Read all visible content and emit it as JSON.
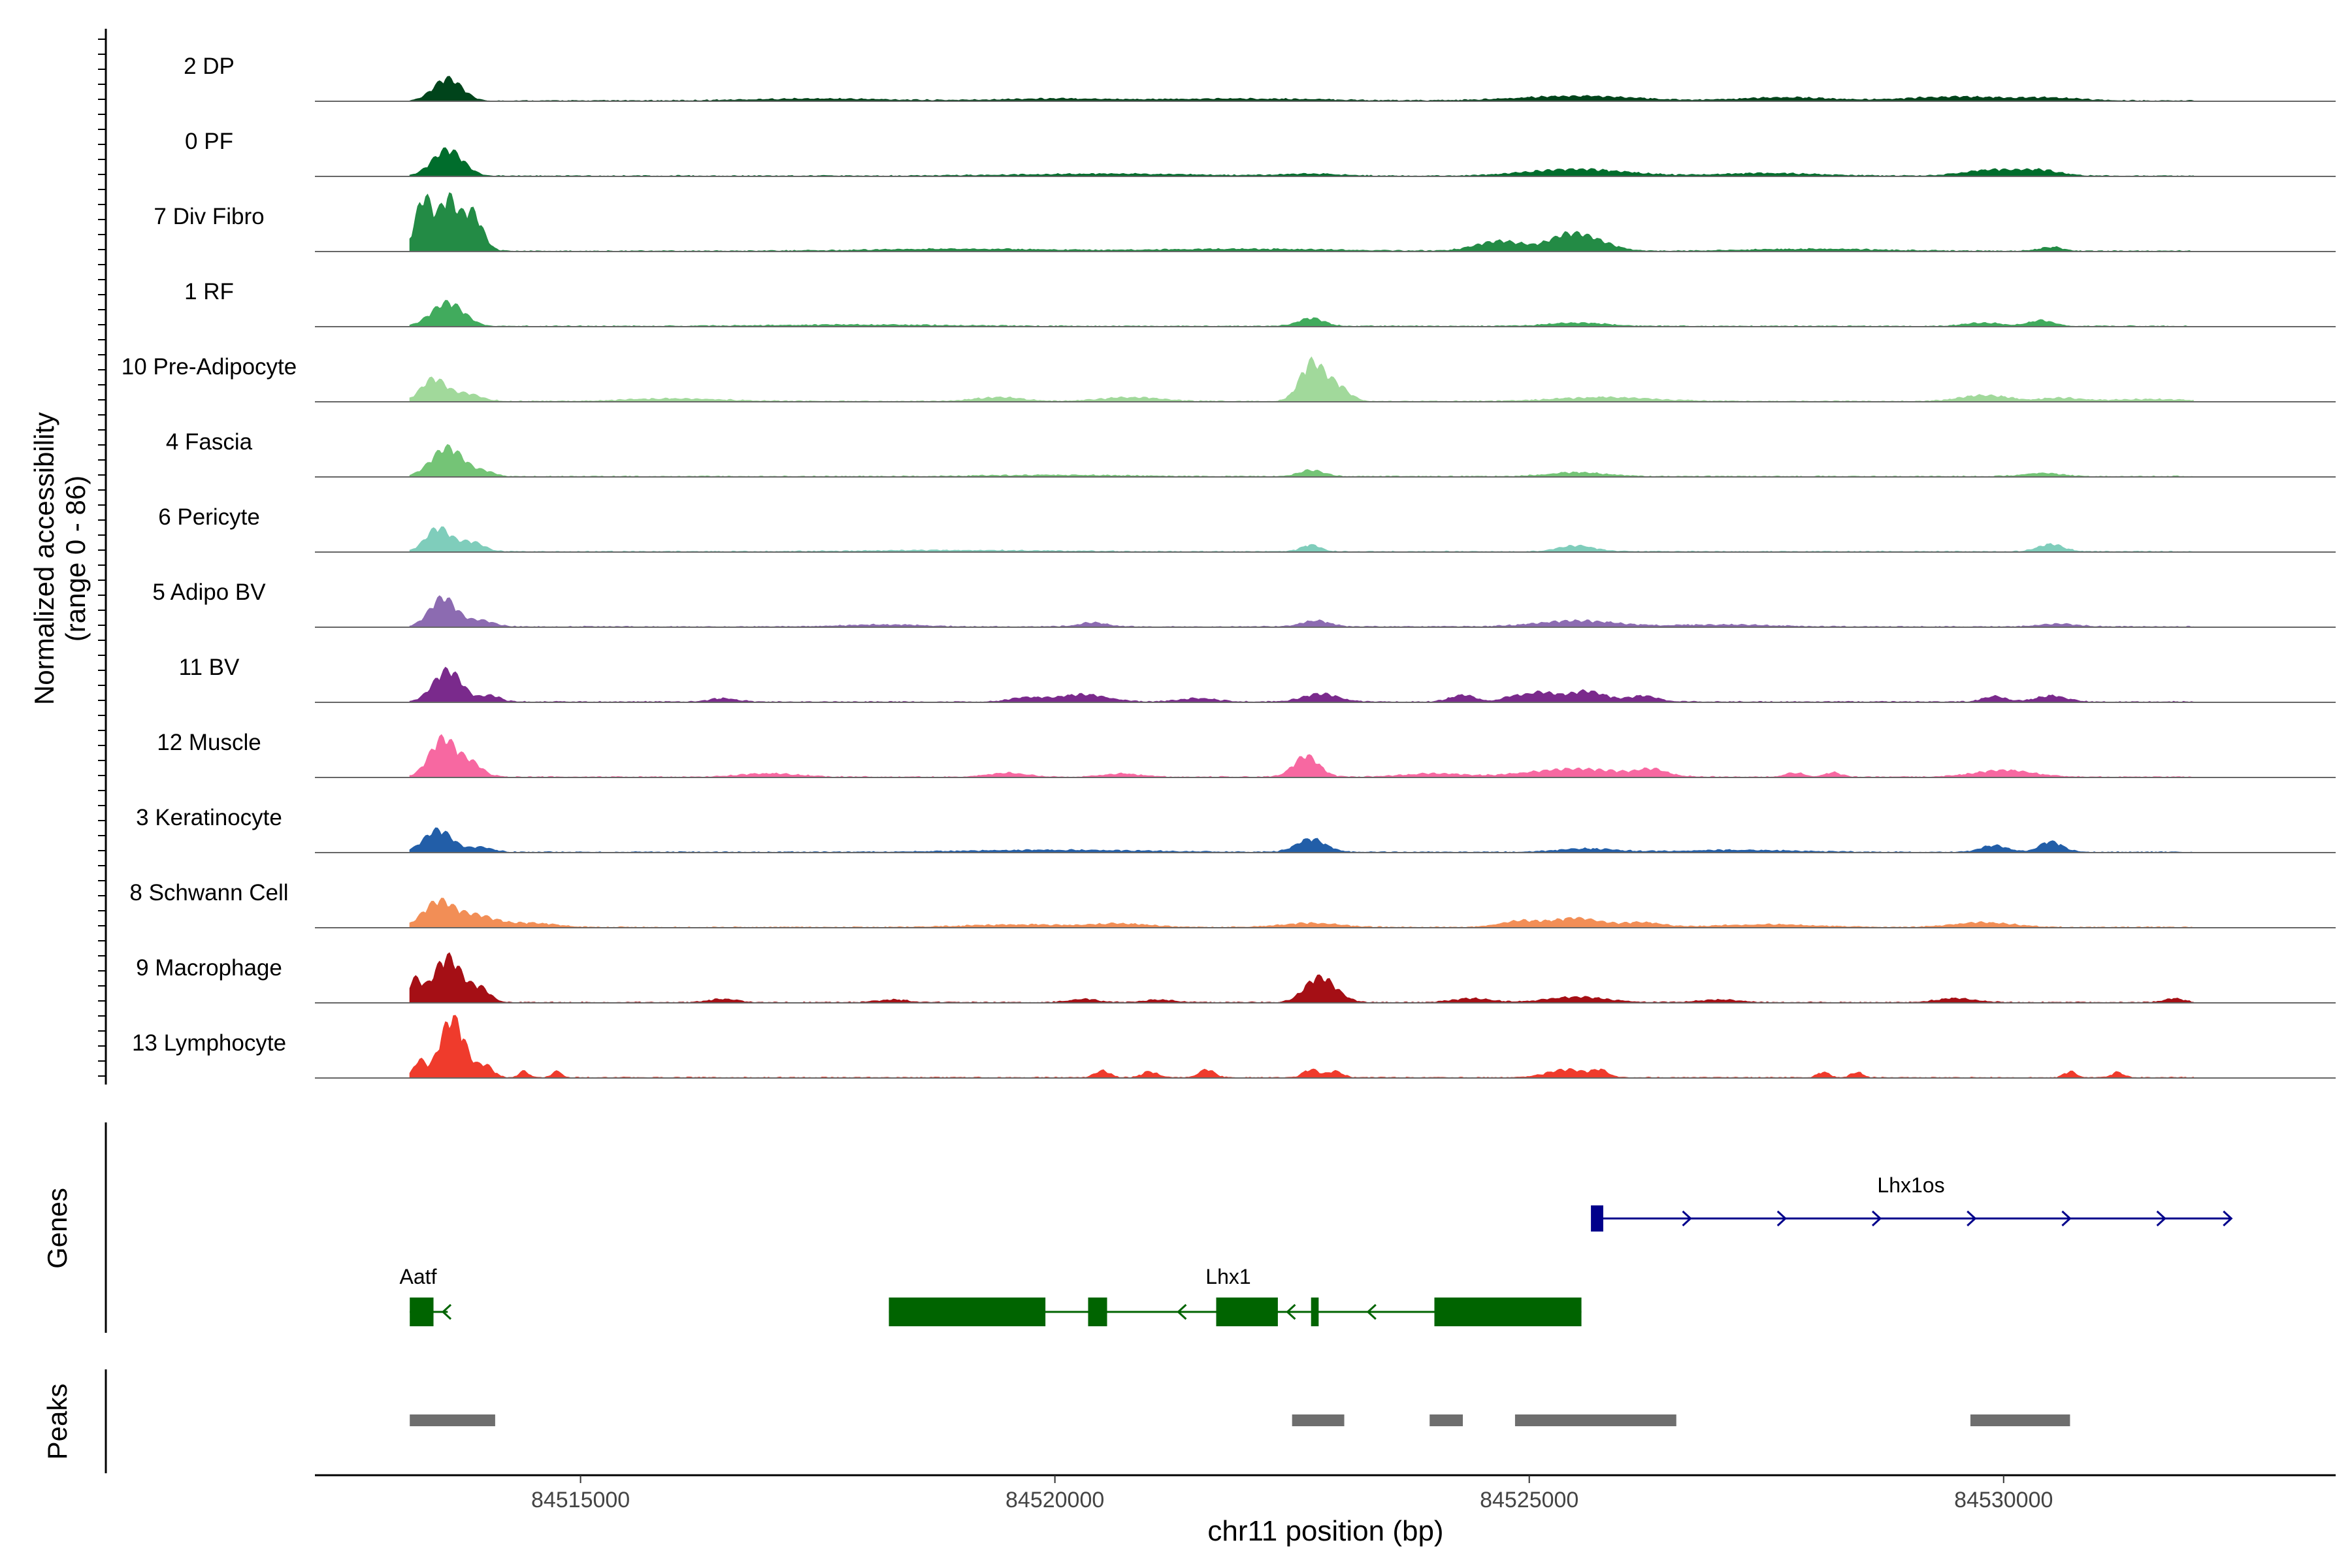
{
  "chart_data": {
    "type": "area",
    "title": "",
    "chromosome": "chr11",
    "xlabel": "chr11 position (bp)",
    "ylabel_line1": "Normalized accessibility",
    "ylabel_line2": "(range 0 - 86)",
    "xlim": [
      84512200,
      84533500
    ],
    "xticks": [
      84515000,
      84520000,
      84525000,
      84530000
    ],
    "xtick_labels": [
      "84515000",
      "84520000",
      "84525000",
      "84530000"
    ],
    "y_range": [
      0,
      86
    ],
    "tracks": [
      {
        "name": "2 DP",
        "color": "#00441b",
        "peaks": [
          [
            84513600,
            0.34,
            150
          ],
          [
            84525500,
            0.07,
            600
          ],
          [
            84527700,
            0.05,
            450
          ],
          [
            84529500,
            0.06,
            500
          ],
          [
            84517500,
            0.03,
            700
          ],
          [
            84522000,
            0.03,
            800
          ],
          [
            84530500,
            0.04,
            300
          ],
          [
            84520000,
            0.03,
            600
          ]
        ]
      },
      {
        "name": "0 PF",
        "color": "#006d2c",
        "peaks": [
          [
            84513600,
            0.4,
            160
          ],
          [
            84525500,
            0.1,
            500
          ],
          [
            84529900,
            0.09,
            300
          ],
          [
            84530400,
            0.07,
            200
          ],
          [
            84520500,
            0.03,
            900
          ],
          [
            84522700,
            0.03,
            300
          ],
          [
            84527500,
            0.04,
            500
          ]
        ]
      },
      {
        "name": "7 Div Fibro",
        "color": "#238b45",
        "peaks": [
          [
            84513350,
            0.8,
            90
          ],
          [
            84513600,
            0.75,
            90
          ],
          [
            84513850,
            0.6,
            110
          ],
          [
            84524700,
            0.15,
            250
          ],
          [
            84525400,
            0.22,
            200
          ],
          [
            84525700,
            0.12,
            200
          ],
          [
            84530500,
            0.06,
            120
          ],
          [
            84519000,
            0.03,
            900
          ],
          [
            84522000,
            0.03,
            900
          ],
          [
            84528000,
            0.03,
            700
          ]
        ]
      },
      {
        "name": "1 RF",
        "color": "#41ab5d",
        "peaks": [
          [
            84513600,
            0.36,
            170
          ],
          [
            84522700,
            0.12,
            130
          ],
          [
            84530400,
            0.09,
            120
          ],
          [
            84529800,
            0.05,
            200
          ],
          [
            84525500,
            0.05,
            300
          ],
          [
            84518000,
            0.02,
            900
          ]
        ]
      },
      {
        "name": "10 Pre-Adipocyte",
        "color": "#a1d99b",
        "peaks": [
          [
            84513450,
            0.34,
            130
          ],
          [
            84513800,
            0.12,
            150
          ],
          [
            84522700,
            0.55,
            120
          ],
          [
            84522950,
            0.25,
            130
          ],
          [
            84519400,
            0.06,
            250
          ],
          [
            84520800,
            0.06,
            300
          ],
          [
            84525800,
            0.06,
            500
          ],
          [
            84529800,
            0.09,
            250
          ],
          [
            84530600,
            0.05,
            200
          ],
          [
            84516000,
            0.04,
            500
          ],
          [
            84531500,
            0.03,
            400
          ]
        ]
      },
      {
        "name": "4 Fascia",
        "color": "#74c476",
        "peaks": [
          [
            84513600,
            0.44,
            170
          ],
          [
            84514000,
            0.07,
            100
          ],
          [
            84522700,
            0.09,
            130
          ],
          [
            84525500,
            0.06,
            300
          ],
          [
            84530400,
            0.05,
            200
          ],
          [
            84520000,
            0.02,
            700
          ]
        ]
      },
      {
        "name": "6 Pericyte",
        "color": "#7fcdbb",
        "peaks": [
          [
            84513500,
            0.36,
            130
          ],
          [
            84513850,
            0.15,
            130
          ],
          [
            84522700,
            0.1,
            100
          ],
          [
            84525500,
            0.09,
            180
          ],
          [
            84530500,
            0.11,
            130
          ],
          [
            84519000,
            0.02,
            900
          ]
        ]
      },
      {
        "name": "5 Adipo BV",
        "color": "#8c6bb1",
        "peaks": [
          [
            84513550,
            0.44,
            140
          ],
          [
            84513950,
            0.1,
            140
          ],
          [
            84522750,
            0.09,
            150
          ],
          [
            84525500,
            0.09,
            400
          ],
          [
            84520400,
            0.06,
            150
          ],
          [
            84530600,
            0.04,
            200
          ],
          [
            84518200,
            0.03,
            400
          ],
          [
            84527000,
            0.03,
            500
          ]
        ]
      },
      {
        "name": "11 BV",
        "color": "#7a2a8c",
        "peaks": [
          [
            84513600,
            0.48,
            150
          ],
          [
            84514050,
            0.1,
            100
          ],
          [
            84520300,
            0.11,
            250
          ],
          [
            84522800,
            0.12,
            180
          ],
          [
            84524300,
            0.1,
            130
          ],
          [
            84525600,
            0.16,
            200
          ],
          [
            84525100,
            0.14,
            160
          ],
          [
            84526200,
            0.09,
            150
          ],
          [
            84529900,
            0.08,
            120
          ],
          [
            84530500,
            0.09,
            160
          ],
          [
            84516500,
            0.05,
            150
          ],
          [
            84519700,
            0.06,
            180
          ],
          [
            84524800,
            0.06,
            100
          ],
          [
            84521500,
            0.05,
            200
          ]
        ]
      },
      {
        "name": "12 Muscle",
        "color": "#f768a1",
        "peaks": [
          [
            84513550,
            0.58,
            140
          ],
          [
            84513850,
            0.2,
            120
          ],
          [
            84522650,
            0.32,
            130
          ],
          [
            84525500,
            0.12,
            500
          ],
          [
            84526300,
            0.09,
            150
          ],
          [
            84530000,
            0.1,
            300
          ],
          [
            84519500,
            0.06,
            200
          ],
          [
            84517000,
            0.05,
            300
          ],
          [
            84520700,
            0.05,
            200
          ],
          [
            84524000,
            0.05,
            300
          ],
          [
            84527800,
            0.06,
            100
          ],
          [
            84528200,
            0.07,
            80
          ]
        ]
      },
      {
        "name": "3 Keratinocyte",
        "color": "#225ea8",
        "peaks": [
          [
            84513500,
            0.34,
            150
          ],
          [
            84513950,
            0.08,
            120
          ],
          [
            84522700,
            0.2,
            150
          ],
          [
            84530500,
            0.16,
            120
          ],
          [
            84529900,
            0.1,
            140
          ],
          [
            84525600,
            0.05,
            300
          ],
          [
            84520000,
            0.03,
            900
          ],
          [
            84527200,
            0.03,
            600
          ]
        ]
      },
      {
        "name": "8 Schwann Cell",
        "color": "#f28e56",
        "peaks": [
          [
            84513500,
            0.38,
            160
          ],
          [
            84513900,
            0.18,
            200
          ],
          [
            84514500,
            0.06,
            250
          ],
          [
            84525500,
            0.14,
            250
          ],
          [
            84524900,
            0.09,
            200
          ],
          [
            84526200,
            0.07,
            200
          ],
          [
            84522700,
            0.06,
            300
          ],
          [
            84529800,
            0.07,
            300
          ],
          [
            84519600,
            0.04,
            500
          ],
          [
            84520700,
            0.05,
            300
          ],
          [
            84527500,
            0.04,
            500
          ]
        ]
      },
      {
        "name": "9 Macrophage",
        "color": "#a50f15",
        "peaks": [
          [
            84513250,
            0.32,
            70
          ],
          [
            84513600,
            0.68,
            150
          ],
          [
            84513950,
            0.2,
            100
          ],
          [
            84522750,
            0.28,
            140
          ],
          [
            84522900,
            0.15,
            140
          ],
          [
            84525500,
            0.08,
            300
          ],
          [
            84524400,
            0.06,
            200
          ],
          [
            84529500,
            0.06,
            200
          ],
          [
            84531800,
            0.06,
            100
          ],
          [
            84516500,
            0.05,
            150
          ],
          [
            84518300,
            0.04,
            150
          ],
          [
            84520300,
            0.05,
            150
          ],
          [
            84527000,
            0.04,
            200
          ],
          [
            84521100,
            0.04,
            150
          ]
        ]
      },
      {
        "name": "13 Lymphocyte",
        "color": "#ef3b2c",
        "peaks": [
          [
            84513300,
            0.25,
            60
          ],
          [
            84513650,
            0.9,
            130
          ],
          [
            84514000,
            0.18,
            80
          ],
          [
            84514400,
            0.1,
            50
          ],
          [
            84514750,
            0.1,
            50
          ],
          [
            84522700,
            0.12,
            80
          ],
          [
            84525400,
            0.12,
            200
          ],
          [
            84520500,
            0.1,
            80
          ],
          [
            84521000,
            0.09,
            80
          ],
          [
            84521600,
            0.12,
            80
          ],
          [
            84522950,
            0.09,
            80
          ],
          [
            84525750,
            0.1,
            80
          ],
          [
            84528100,
            0.08,
            60
          ],
          [
            84528450,
            0.08,
            60
          ],
          [
            84530700,
            0.09,
            60
          ],
          [
            84531200,
            0.08,
            60
          ]
        ]
      }
    ],
    "genes_label": "Genes",
    "genes": [
      {
        "name": "Lhx1os",
        "strand": "+",
        "color": "#00008b",
        "start": 84525700,
        "end": 84532400,
        "exons": [
          [
            84525650,
            84525780
          ]
        ],
        "arrows": [
          84526700,
          84527700,
          84528700,
          84529700,
          84530700,
          84531700,
          84532400
        ]
      },
      {
        "name": "Aatf",
        "strand": "-",
        "color": "#006400",
        "start": 84513200,
        "end": 84513600,
        "exons": [
          [
            84513200,
            84513450
          ]
        ],
        "arrows": [
          84513550
        ]
      },
      {
        "name": "Lhx1",
        "strand": "-",
        "color": "#006400",
        "start": 84518250,
        "end": 84525550,
        "exons": [
          [
            84518250,
            84519900
          ],
          [
            84520350,
            84520550
          ],
          [
            84521700,
            84522350
          ],
          [
            84522700,
            84522780
          ],
          [
            84524000,
            84525550
          ]
        ],
        "arrows": [
          84521300,
          84522450,
          84523300
        ]
      }
    ],
    "peaks_label": "Peaks",
    "peak_regions": [
      [
        84513200,
        84514100
      ],
      [
        84522500,
        84523050
      ],
      [
        84523950,
        84524300
      ],
      [
        84524850,
        84526550
      ],
      [
        84529650,
        84530700
      ]
    ]
  }
}
